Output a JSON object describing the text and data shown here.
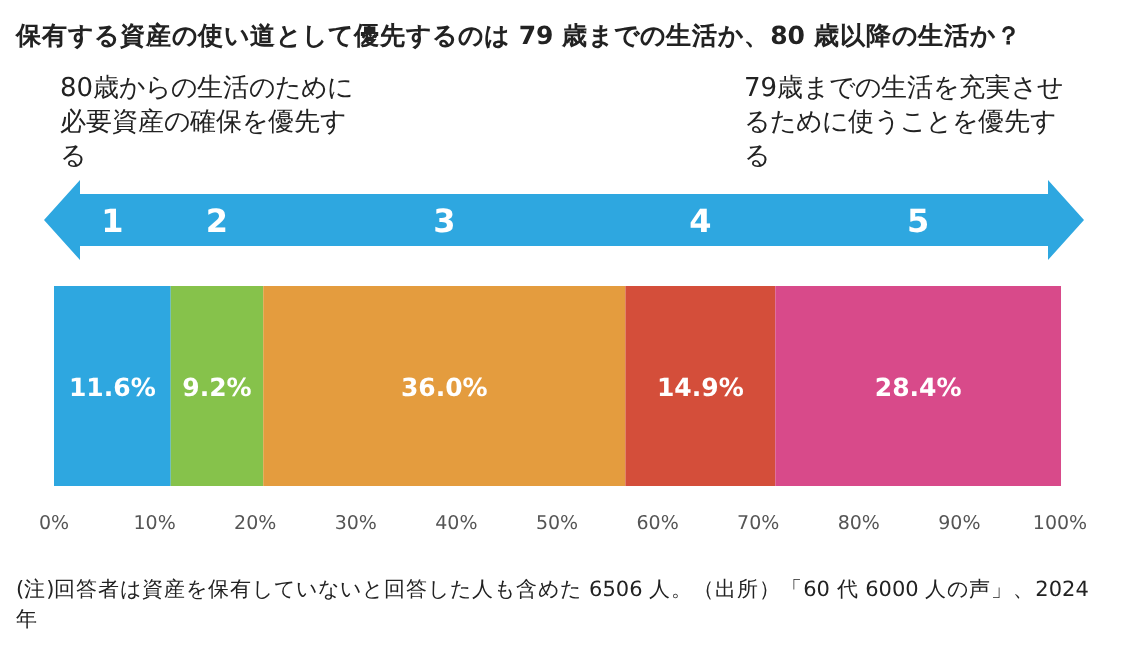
{
  "chart_data": {
    "type": "bar",
    "orientation": "horizontal",
    "stacked": true,
    "title": "保有する資産の使い道として優先するのは 79 歳までの生活か、80 歳以降の生活か？",
    "categories": [
      null
    ],
    "series": [
      {
        "name": "1",
        "color": "#2ea7e0",
        "values": [
          11.6
        ],
        "value_labels": [
          "11.6%"
        ]
      },
      {
        "name": "2",
        "color": "#86c24b",
        "values": [
          9.2
        ],
        "value_labels": [
          "9.2%"
        ]
      },
      {
        "name": "3",
        "color": "#e49c3e",
        "values": [
          36.0
        ],
        "value_labels": [
          "36.0%"
        ]
      },
      {
        "name": "4",
        "color": "#d44e3a",
        "values": [
          14.9
        ],
        "value_labels": [
          "14.9%"
        ]
      },
      {
        "name": "5",
        "color": "#d84a8a",
        "values": [
          28.4
        ],
        "value_labels": [
          "28.4%"
        ]
      }
    ],
    "xlim": [
      0,
      100
    ],
    "xticks": [
      {
        "value": 0,
        "label": "0%"
      },
      {
        "value": 10,
        "label": "10%"
      },
      {
        "value": 20,
        "label": "20%"
      },
      {
        "value": 30,
        "label": "30%"
      },
      {
        "value": 40,
        "label": "40%"
      },
      {
        "value": 50,
        "label": "50%"
      },
      {
        "value": 60,
        "label": "60%"
      },
      {
        "value": 70,
        "label": "70%"
      },
      {
        "value": 80,
        "label": "80%"
      },
      {
        "value": 90,
        "label": "90%"
      },
      {
        "value": 100,
        "label": "100%"
      }
    ],
    "annotations": [
      "80歳からの生活のために必要資産の確保を優先する",
      "79歳までの生活を充実させるために使うことを優先する",
      "(注)回答者は資産を保有していないと回答した人も含めた 6506 人。（出所）「60 代 6000 人の声」、2024 年"
    ]
  }
}
